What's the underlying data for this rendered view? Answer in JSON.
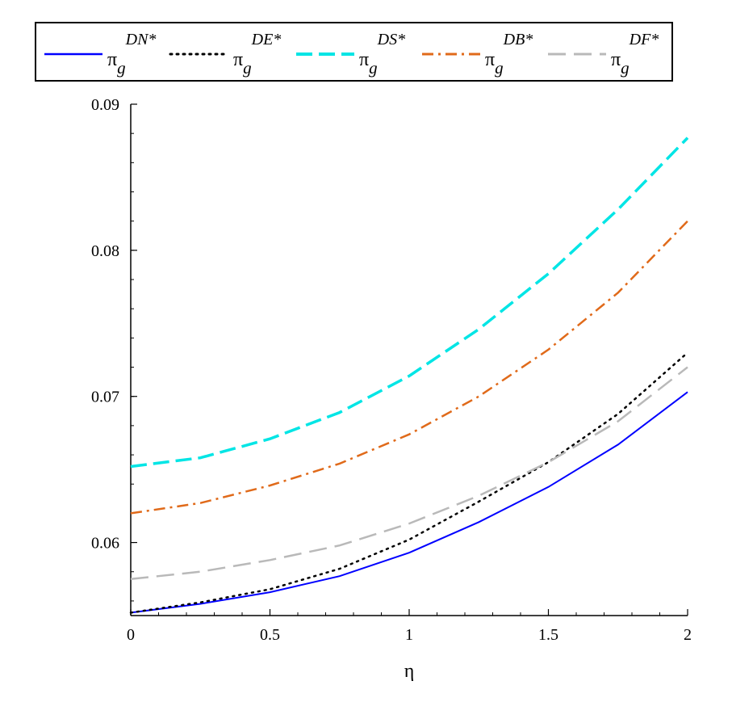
{
  "chart_data": {
    "type": "line",
    "title": "",
    "xlabel": "η",
    "ylabel": "",
    "xlim": [
      0,
      2
    ],
    "ylim": [
      0.055,
      0.09
    ],
    "x_ticks": [
      0,
      0.5,
      1,
      1.5,
      2
    ],
    "x_tick_labels": [
      "0",
      "0.5",
      "1",
      "1.5",
      "2"
    ],
    "y_ticks": [
      0.06,
      0.07,
      0.08,
      0.09
    ],
    "y_tick_labels": [
      "0.06",
      "0.07",
      "0.08",
      "0.09"
    ],
    "grid": false,
    "legend_position": "top",
    "x": [
      0,
      0.25,
      0.5,
      0.75,
      1,
      1.25,
      1.5,
      1.75,
      2
    ],
    "series": [
      {
        "name": "π_g^{DN*}",
        "sym": "π",
        "sub": "g",
        "sup": "DN*",
        "color": "#0000ff",
        "style": "solid",
        "values": [
          0.0552,
          0.0558,
          0.0566,
          0.0577,
          0.0593,
          0.0614,
          0.0638,
          0.0667,
          0.0703
        ]
      },
      {
        "name": "π_g^{DE*}",
        "sym": "π",
        "sub": "g",
        "sup": "DE*",
        "color": "#000000",
        "style": "dot",
        "values": [
          0.0552,
          0.0559,
          0.0568,
          0.0582,
          0.0602,
          0.0628,
          0.0655,
          0.0688,
          0.073
        ]
      },
      {
        "name": "π_g^{DS*}",
        "sym": "π",
        "sub": "g",
        "sup": "DS*",
        "color": "#00e5e5",
        "style": "dash",
        "values": [
          0.0652,
          0.0658,
          0.0671,
          0.0689,
          0.0714,
          0.0746,
          0.0784,
          0.0828,
          0.0877
        ]
      },
      {
        "name": "π_g^{DB*}",
        "sym": "π",
        "sub": "g",
        "sup": "DB*",
        "color": "#e06a1a",
        "style": "dashdot",
        "values": [
          0.062,
          0.0627,
          0.0639,
          0.0654,
          0.0674,
          0.07,
          0.0732,
          0.0771,
          0.082
        ]
      },
      {
        "name": "π_g^{DF*}",
        "sym": "π",
        "sub": "g",
        "sup": "DF*",
        "color": "#b9b9b9",
        "style": "longdash",
        "values": [
          0.0575,
          0.058,
          0.0588,
          0.0598,
          0.0613,
          0.0632,
          0.0655,
          0.0683,
          0.072
        ]
      }
    ]
  }
}
